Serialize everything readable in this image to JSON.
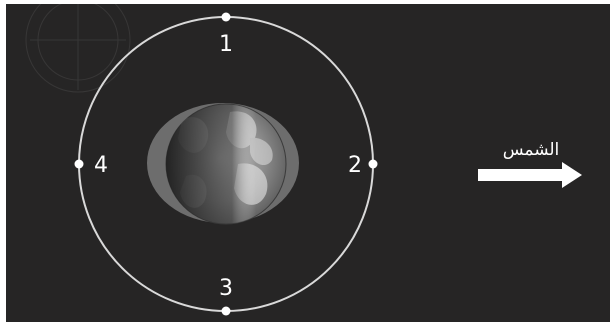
{
  "diagram": {
    "positions": [
      {
        "id": "1",
        "label": "1"
      },
      {
        "id": "2",
        "label": "2"
      },
      {
        "id": "3",
        "label": "3"
      },
      {
        "id": "4",
        "label": "4"
      }
    ],
    "sun_direction_label": "الشمس"
  },
  "colors": {
    "background": "#262525",
    "orbit": "#d9d9d9",
    "moon_shadow": "#6d6d6d",
    "arrow": "#ffffff"
  }
}
